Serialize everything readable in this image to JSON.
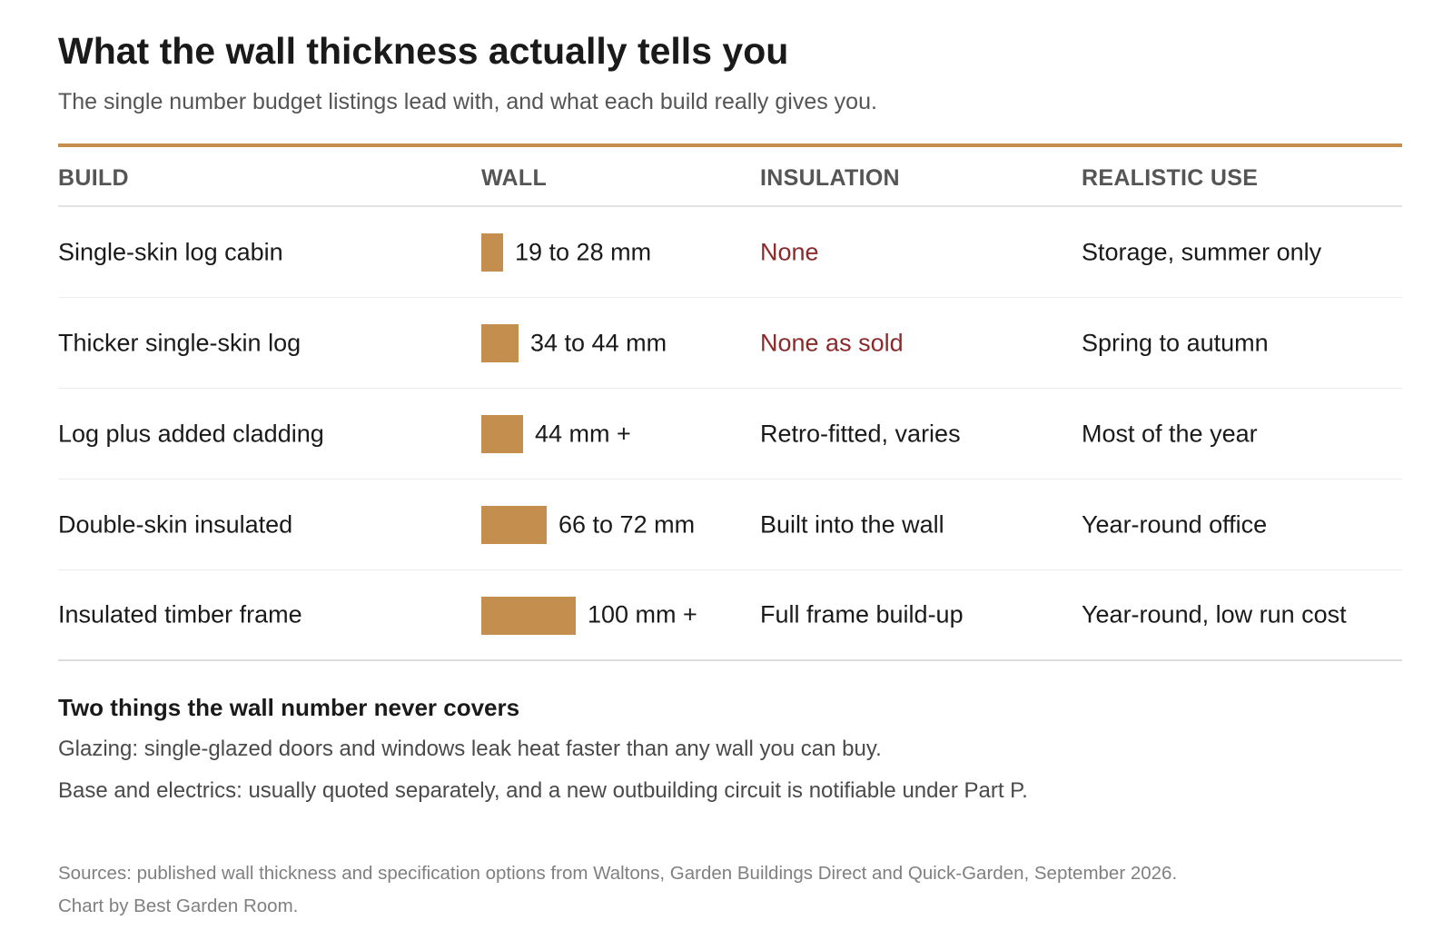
{
  "title": "What the wall thickness actually tells you",
  "subtitle": "The single number budget listings lead with, and what each build really gives you.",
  "columns": [
    "BUILD",
    "WALL",
    "INSULATION",
    "REALISTIC USE"
  ],
  "accent_color": "#c48e4f",
  "warning_color": "#8b2a2a",
  "chart_data": {
    "type": "table",
    "columns": [
      "BUILD",
      "WALL",
      "INSULATION",
      "REALISTIC USE"
    ],
    "rows": [
      {
        "build": "Single-skin log cabin",
        "wall_label": "19 to 28 mm",
        "wall_mm": [
          19,
          28
        ],
        "insulation": "None",
        "insulation_flag": "warning",
        "use": "Storage, summer only"
      },
      {
        "build": "Thicker single-skin log",
        "wall_label": "34 to 44 mm",
        "wall_mm": [
          34,
          44
        ],
        "insulation": "None as sold",
        "insulation_flag": "warning",
        "use": "Spring to autumn"
      },
      {
        "build": "Log plus added cladding",
        "wall_label": "44 mm +",
        "wall_mm": [
          44,
          44
        ],
        "insulation": "Retro-fitted, varies",
        "insulation_flag": "normal",
        "use": "Most of the year"
      },
      {
        "build": "Double-skin insulated",
        "wall_label": "66 to 72 mm",
        "wall_mm": [
          66,
          72
        ],
        "insulation": "Built into the wall",
        "insulation_flag": "normal",
        "use": "Year-round office"
      },
      {
        "build": "Insulated timber frame",
        "wall_label": "100 mm +",
        "wall_mm": [
          100,
          100
        ],
        "insulation": "Full frame build-up",
        "insulation_flag": "normal",
        "use": "Year-round, low run cost"
      }
    ]
  },
  "notes": {
    "title": "Two things the wall number never covers",
    "items": [
      "Glazing: single-glazed doors and windows leak heat faster than any wall you can buy.",
      "Base and electrics: usually quoted separately, and a new outbuilding circuit is notifiable under Part P."
    ]
  },
  "source": {
    "line1": "Sources: published wall thickness and specification options from Waltons, Garden Buildings Direct and Quick-Garden, September 2026.",
    "line2": "Chart by Best Garden Room."
  }
}
